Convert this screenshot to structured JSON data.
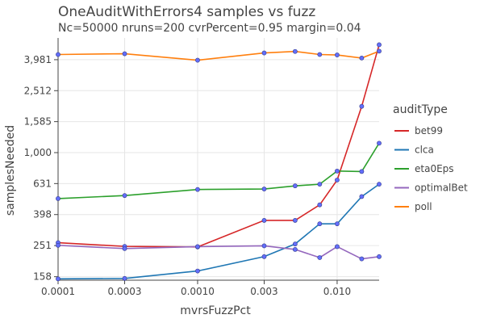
{
  "colors": {
    "bet99": "#d62728",
    "clca": "#1f77b4",
    "eta0Eps": "#2ca02c",
    "optimalBet": "#9467bd",
    "poll": "#ff7f0e",
    "marker": "#636efa"
  },
  "chart_data": {
    "type": "line",
    "title": "OneAuditWithErrors4 samples vs fuzz",
    "subtitle": "Nc=50000 nruns=200 cvrPercent=0.95 margin=0.04",
    "xlabel": "mvrsFuzzPct",
    "ylabel": "samplesNeeded",
    "x_scale": "log",
    "y_scale": "log",
    "xlim": [
      0.0001,
      0.02
    ],
    "ylim": [
      150,
      5500
    ],
    "x_ticks": [
      0.0001,
      0.0003,
      0.001,
      0.003,
      0.01
    ],
    "x_tick_labels": [
      "0.0001",
      "0.0003",
      "0.0010",
      "0.003",
      "0.010"
    ],
    "y_ticks": [
      158,
      251,
      398,
      631,
      1000,
      1585,
      2512,
      3981
    ],
    "y_tick_labels": [
      "158",
      "251",
      "398",
      "631",
      "1,000",
      "1,585",
      "2,512",
      "3,981"
    ],
    "legend_title": "auditType",
    "legend_position": "right",
    "x": [
      0.0001,
      0.0003,
      0.001,
      0.003,
      0.005,
      0.0075,
      0.01,
      0.015,
      0.02
    ],
    "series": [
      {
        "name": "bet99",
        "color_key": "bet99",
        "values": [
          262,
          248,
          246,
          365,
          365,
          460,
          665,
          1990,
          4970
        ]
      },
      {
        "name": "clca",
        "color_key": "clca",
        "values": [
          153,
          154,
          172,
          213,
          257,
          347,
          347,
          520,
          625
        ]
      },
      {
        "name": "eta0Eps",
        "color_key": "eta0Eps",
        "values": [
          505,
          528,
          578,
          582,
          610,
          625,
          760,
          755,
          1150
        ]
      },
      {
        "name": "optimalBet",
        "color_key": "optimalBet",
        "values": [
          252,
          240,
          247,
          250,
          237,
          210,
          247,
          206,
          213
        ]
      },
      {
        "name": "poll",
        "color_key": "poll",
        "values": [
          4300,
          4350,
          3950,
          4400,
          4500,
          4300,
          4270,
          4080,
          4520
        ]
      }
    ]
  }
}
